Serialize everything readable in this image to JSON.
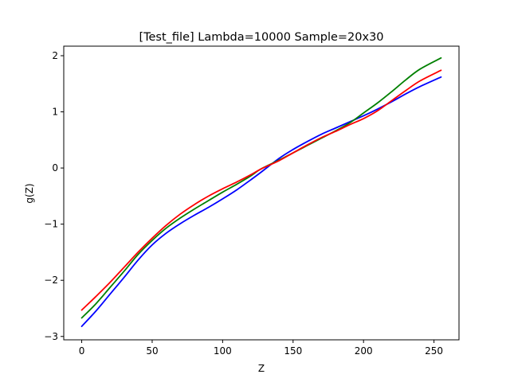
{
  "chart_data": {
    "type": "line",
    "title": "[Test_file] Lambda=10000 Sample=20x30",
    "xlabel": "Z",
    "ylabel": "g(Z)",
    "xlim": [
      -12.75,
      267.75
    ],
    "ylim": [
      -3.06,
      2.17
    ],
    "xticks": [
      0,
      50,
      100,
      150,
      200,
      250
    ],
    "yticks": [
      -3,
      -2,
      -1,
      0,
      1,
      2
    ],
    "xtick_labels": [
      "0",
      "50",
      "100",
      "150",
      "200",
      "250"
    ],
    "ytick_labels": [
      "−3",
      "−2",
      "−1",
      "0",
      "1",
      "2"
    ],
    "grid": false,
    "series": [
      {
        "color": "#0000ff",
        "points": [
          [
            0,
            -2.82
          ],
          [
            10,
            -2.55
          ],
          [
            20,
            -2.25
          ],
          [
            30,
            -1.95
          ],
          [
            40,
            -1.64
          ],
          [
            50,
            -1.37
          ],
          [
            60,
            -1.16
          ],
          [
            70,
            -0.99
          ],
          [
            80,
            -0.84
          ],
          [
            90,
            -0.7
          ],
          [
            100,
            -0.55
          ],
          [
            110,
            -0.39
          ],
          [
            120,
            -0.21
          ],
          [
            127,
            -0.08
          ],
          [
            140,
            0.17
          ],
          [
            150,
            0.33
          ],
          [
            160,
            0.47
          ],
          [
            170,
            0.6
          ],
          [
            180,
            0.71
          ],
          [
            190,
            0.82
          ],
          [
            200,
            0.93
          ],
          [
            210,
            1.05
          ],
          [
            220,
            1.18
          ],
          [
            230,
            1.32
          ],
          [
            240,
            1.45
          ],
          [
            255,
            1.62
          ]
        ]
      },
      {
        "color": "#008000",
        "points": [
          [
            0,
            -2.67
          ],
          [
            10,
            -2.42
          ],
          [
            20,
            -2.13
          ],
          [
            30,
            -1.84
          ],
          [
            40,
            -1.54
          ],
          [
            50,
            -1.29
          ],
          [
            60,
            -1.07
          ],
          [
            70,
            -0.89
          ],
          [
            80,
            -0.73
          ],
          [
            90,
            -0.58
          ],
          [
            100,
            -0.43
          ],
          [
            110,
            -0.29
          ],
          [
            120,
            -0.14
          ],
          [
            127,
            -0.02
          ],
          [
            140,
            0.14
          ],
          [
            150,
            0.27
          ],
          [
            160,
            0.4
          ],
          [
            170,
            0.53
          ],
          [
            180,
            0.66
          ],
          [
            190,
            0.8
          ],
          [
            200,
            0.98
          ],
          [
            210,
            1.16
          ],
          [
            220,
            1.36
          ],
          [
            230,
            1.57
          ],
          [
            240,
            1.76
          ],
          [
            255,
            1.96
          ]
        ]
      },
      {
        "color": "#ff0000",
        "points": [
          [
            0,
            -2.53
          ],
          [
            10,
            -2.29
          ],
          [
            20,
            -2.04
          ],
          [
            30,
            -1.77
          ],
          [
            40,
            -1.5
          ],
          [
            50,
            -1.25
          ],
          [
            60,
            -1.02
          ],
          [
            70,
            -0.82
          ],
          [
            80,
            -0.65
          ],
          [
            90,
            -0.5
          ],
          [
            100,
            -0.37
          ],
          [
            110,
            -0.25
          ],
          [
            120,
            -0.12
          ],
          [
            127,
            -0.02
          ],
          [
            140,
            0.13
          ],
          [
            150,
            0.27
          ],
          [
            160,
            0.41
          ],
          [
            170,
            0.54
          ],
          [
            180,
            0.65
          ],
          [
            190,
            0.77
          ],
          [
            200,
            0.88
          ],
          [
            210,
            1.02
          ],
          [
            220,
            1.2
          ],
          [
            230,
            1.38
          ],
          [
            240,
            1.55
          ],
          [
            255,
            1.74
          ]
        ]
      }
    ]
  }
}
